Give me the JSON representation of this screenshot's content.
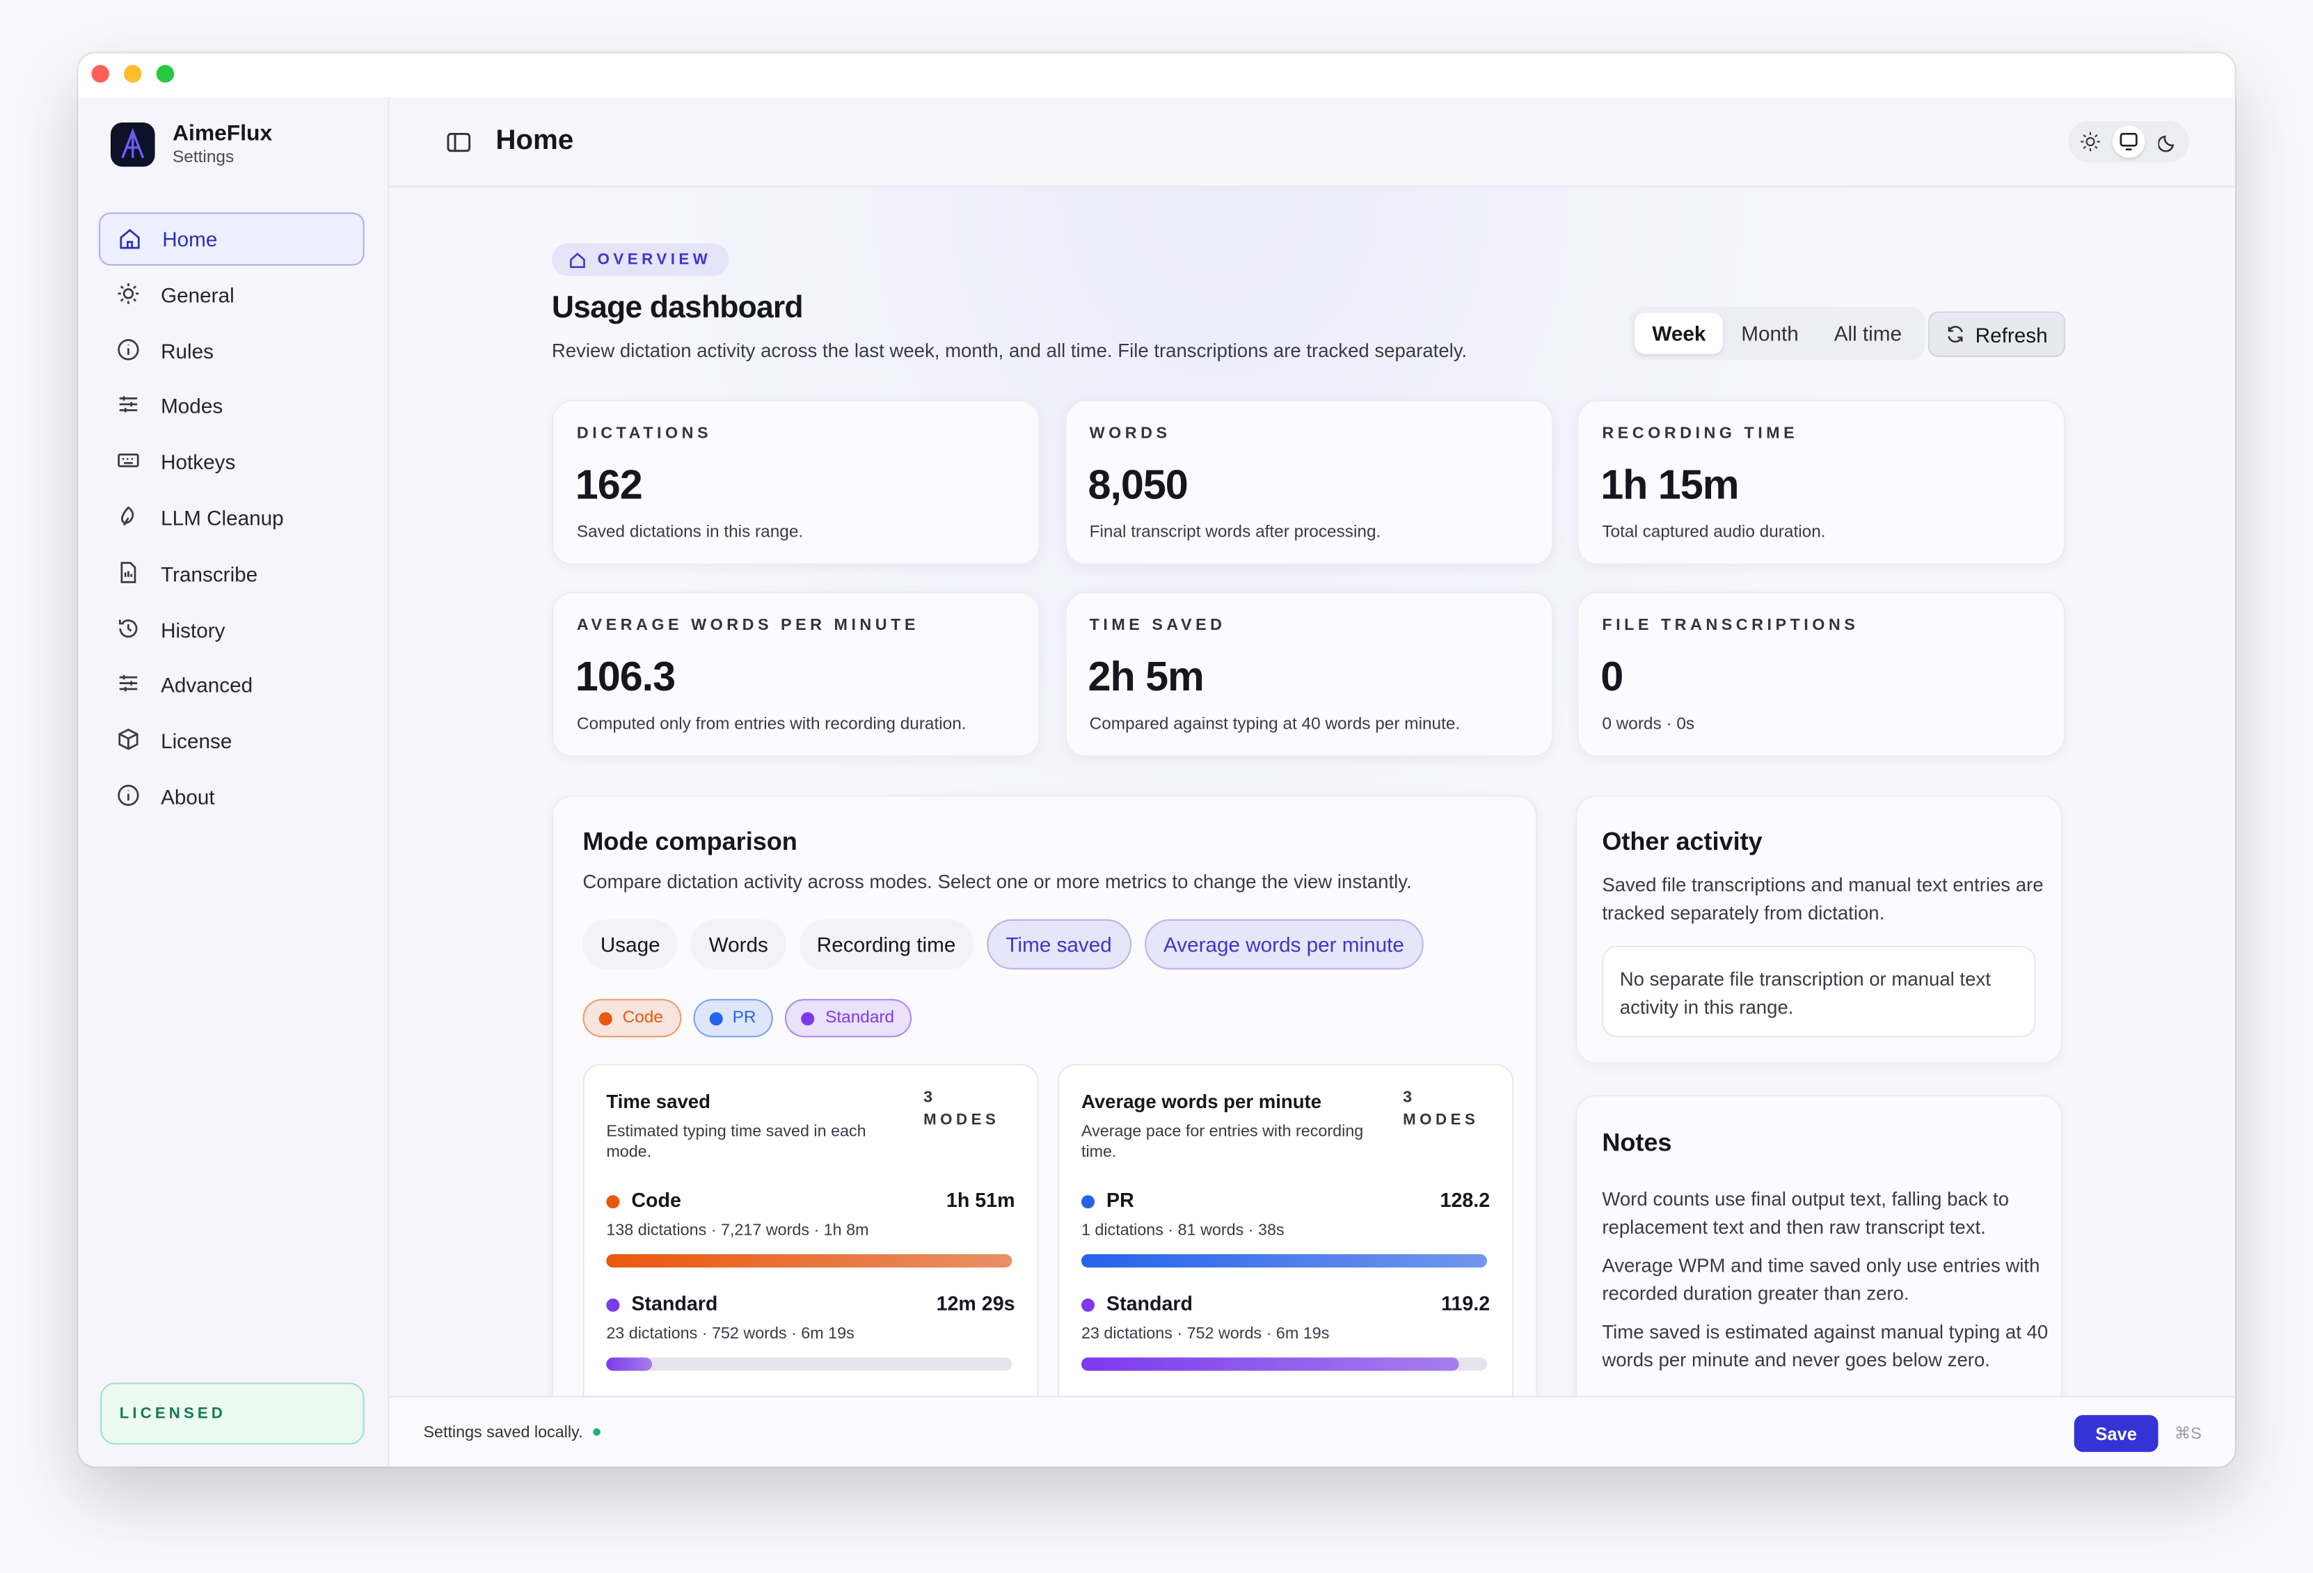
{
  "window": {
    "app_name": "AimeFlux",
    "app_subtitle": "Settings"
  },
  "sidebar": {
    "items": [
      "Home",
      "General",
      "Rules",
      "Modes",
      "Hotkeys",
      "LLM Cleanup",
      "Transcribe",
      "History",
      "Advanced",
      "License",
      "About"
    ],
    "license": "LICENSED"
  },
  "header": {
    "title": "Home"
  },
  "overview": {
    "badge": "OVERVIEW",
    "title": "Usage dashboard",
    "description": "Review dictation activity across the last week, month, and all time. File transcriptions are tracked separately.",
    "ranges": [
      "Week",
      "Month",
      "All time"
    ],
    "refresh": "Refresh"
  },
  "stats": [
    {
      "label": "DICTATIONS",
      "value": "162",
      "note": "Saved dictations in this range."
    },
    {
      "label": "WORDS",
      "value": "8,050",
      "note": "Final transcript words after processing."
    },
    {
      "label": "RECORDING TIME",
      "value": "1h 15m",
      "note": "Total captured audio duration."
    },
    {
      "label": "AVERAGE WORDS PER MINUTE",
      "value": "106.3",
      "note": "Computed only from entries with recording duration."
    },
    {
      "label": "TIME SAVED",
      "value": "2h 5m",
      "note": "Compared against typing at 40 words per minute."
    },
    {
      "label": "FILE TRANSCRIPTIONS",
      "value": "0",
      "note": "0 words · 0s"
    }
  ],
  "mode_comparison": {
    "title": "Mode comparison",
    "description": "Compare dictation activity across modes. Select one or more metrics to change the view instantly.",
    "metrics": [
      "Usage",
      "Words",
      "Recording time",
      "Time saved",
      "Average words per minute"
    ],
    "modes": [
      {
        "name": "Code",
        "color": "#ea580c"
      },
      {
        "name": "PR",
        "color": "#2563eb"
      },
      {
        "name": "Standard",
        "color": "#7c3aed"
      }
    ],
    "cards": [
      {
        "title": "Time saved",
        "subtitle": "Estimated typing time saved in each mode.",
        "count": "3",
        "count_label": "MODES",
        "rows": [
          {
            "name": "Code",
            "color": "#ea580c",
            "value": "1h 51m",
            "detail": "138 dictations · 7,217 words · 1h 8m"
          },
          {
            "name": "Standard",
            "color": "#7c3aed",
            "value": "12m 29s",
            "detail": "23 dictations · 752 words · 6m 19s"
          }
        ]
      },
      {
        "title": "Average words per minute",
        "subtitle": "Average pace for entries with recording time.",
        "count": "3",
        "count_label": "MODES",
        "rows": [
          {
            "name": "PR",
            "color": "#2563eb",
            "value": "128.2",
            "detail": "1 dictations · 81 words · 38s"
          },
          {
            "name": "Standard",
            "color": "#7c3aed",
            "value": "119.2",
            "detail": "23 dictations · 752 words · 6m 19s"
          }
        ]
      }
    ]
  },
  "other_activity": {
    "title": "Other activity",
    "description": "Saved file transcriptions and manual text entries are tracked separately from dictation.",
    "empty": "No separate file transcription or manual text activity in this range."
  },
  "notes": {
    "title": "Notes",
    "items": [
      "Word counts use final output text, falling back to replacement text and then raw transcript text.",
      "Average WPM and time saved only use entries with recorded duration greater than zero.",
      "Time saved is estimated against manual typing at 40 words per minute and never goes below zero."
    ]
  },
  "footer": {
    "status": "Settings saved locally.",
    "save": "Save",
    "shortcut": "⌘S"
  }
}
